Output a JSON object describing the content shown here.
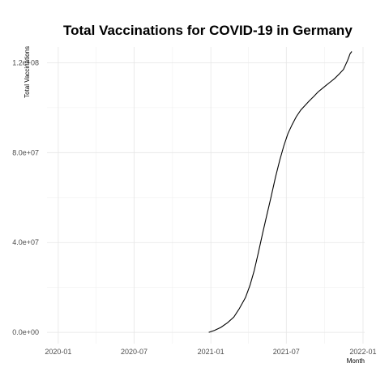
{
  "chart_data": {
    "type": "line",
    "title": "Total Vaccinations for COVID-19 in Germany",
    "xlabel": "Month",
    "ylabel": "Total Vaccinations",
    "x_axis_type": "date",
    "xlim": [
      "2019-12-05",
      "2022-01-05"
    ],
    "ylim": [
      -5000000,
      127000000
    ],
    "x_ticks": [
      "2020-01-01",
      "2020-07-01",
      "2021-01-01",
      "2021-07-01",
      "2022-01-01"
    ],
    "x_tick_labels": [
      "2020-01",
      "2020-07",
      "2021-01",
      "2021-07",
      "2022-01"
    ],
    "y_ticks": [
      0,
      40000000,
      80000000,
      120000000
    ],
    "y_tick_labels": [
      "0.0e+00",
      "4.0e+07",
      "8.0e+07",
      "1.2e+08"
    ],
    "grid": true,
    "series": [
      {
        "color": "#000000",
        "x": [
          "2020-12-27",
          "2021-01-10",
          "2021-01-25",
          "2021-02-10",
          "2021-02-25",
          "2021-03-10",
          "2021-03-25",
          "2021-04-05",
          "2021-04-15",
          "2021-04-25",
          "2021-05-05",
          "2021-05-15",
          "2021-05-25",
          "2021-06-05",
          "2021-06-15",
          "2021-06-25",
          "2021-07-05",
          "2021-07-15",
          "2021-07-25",
          "2021-08-05",
          "2021-08-15",
          "2021-08-25",
          "2021-09-05",
          "2021-09-15",
          "2021-09-25",
          "2021-10-05",
          "2021-10-15",
          "2021-10-25",
          "2021-11-05",
          "2021-11-15",
          "2021-11-25",
          "2021-12-01",
          "2021-12-05"
        ],
        "values": [
          0,
          900000,
          2200000,
          4300000,
          6800000,
          10500000,
          15500000,
          21000000,
          27500000,
          35500000,
          44000000,
          52000000,
          60000000,
          69000000,
          76500000,
          83000000,
          88500000,
          92500000,
          96000000,
          99000000,
          101000000,
          103000000,
          105000000,
          107000000,
          108500000,
          110000000,
          111500000,
          113000000,
          115000000,
          117000000,
          121000000,
          124000000,
          125000000
        ]
      }
    ]
  }
}
